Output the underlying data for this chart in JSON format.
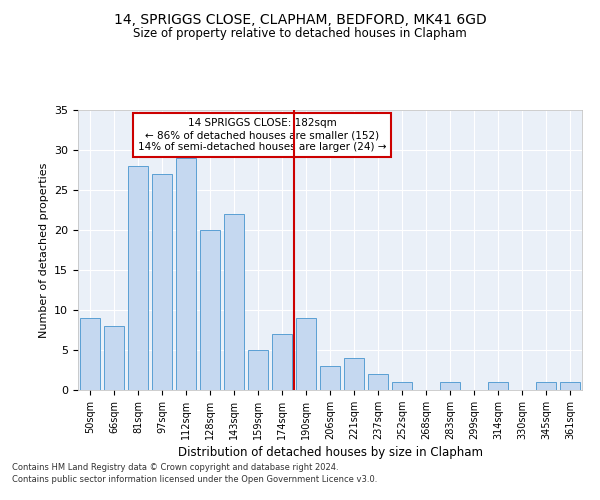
{
  "title": "14, SPRIGGS CLOSE, CLAPHAM, BEDFORD, MK41 6GD",
  "subtitle": "Size of property relative to detached houses in Clapham",
  "xlabel": "Distribution of detached houses by size in Clapham",
  "ylabel": "Number of detached properties",
  "categories": [
    "50sqm",
    "66sqm",
    "81sqm",
    "97sqm",
    "112sqm",
    "128sqm",
    "143sqm",
    "159sqm",
    "174sqm",
    "190sqm",
    "206sqm",
    "221sqm",
    "237sqm",
    "252sqm",
    "268sqm",
    "283sqm",
    "299sqm",
    "314sqm",
    "330sqm",
    "345sqm",
    "361sqm"
  ],
  "values": [
    9,
    8,
    28,
    27,
    29,
    20,
    22,
    5,
    7,
    9,
    3,
    4,
    2,
    1,
    0,
    1,
    0,
    1,
    0,
    1,
    1
  ],
  "bar_color": "#c5d8f0",
  "bar_edge_color": "#5a9fd4",
  "vline_color": "#cc0000",
  "annotation_text": "14 SPRIGGS CLOSE: 182sqm\n← 86% of detached houses are smaller (152)\n14% of semi-detached houses are larger (24) →",
  "annotation_box_color": "#ffffff",
  "annotation_box_edge": "#cc0000",
  "ylim": [
    0,
    35
  ],
  "yticks": [
    0,
    5,
    10,
    15,
    20,
    25,
    30,
    35
  ],
  "background_color": "#eaf0f8",
  "grid_color": "#ffffff",
  "footnote1": "Contains HM Land Registry data © Crown copyright and database right 2024.",
  "footnote2": "Contains public sector information licensed under the Open Government Licence v3.0."
}
